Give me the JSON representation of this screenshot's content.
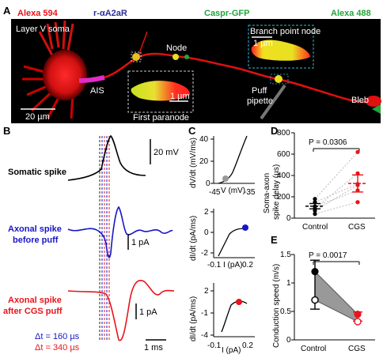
{
  "panel_labels": {
    "a": "A",
    "b": "B",
    "c": "C",
    "d": "D",
    "e": "E"
  },
  "panel_a": {
    "legend": {
      "alexa594": "Alexa 594",
      "ra2ar": "r-αA2aR",
      "caspr": "Caspr-GFP",
      "alexa488": "Alexa 488"
    },
    "labels": {
      "soma": "Layer V soma",
      "ais": "AIS",
      "node": "Node",
      "branch_node": "Branch point node",
      "first_paranode": "First paranode",
      "puff_pipette": "Puff\npipette",
      "bleb": "Bleb"
    },
    "scalebars": {
      "main": "20 µm",
      "inset_branch": "1 µm",
      "inset_paranode": "1 µm"
    },
    "colors": {
      "red": "#e8141c",
      "blue": "#2b2f9e",
      "green": "#21a63c",
      "inset_border": "#31b7d8",
      "magenta": "#e02cc8"
    }
  },
  "panel_b": {
    "traces": {
      "somatic": "Somatic spike",
      "axonal_before": "Axonal spike\nbefore puff",
      "axonal_after": "Axonal spike\nafter CGS puff"
    },
    "scalebars": {
      "somatic_v": "20 mV",
      "axonal_before_i": "1 pA",
      "axonal_after_i": "1 pA",
      "time": "1 ms"
    },
    "delays": {
      "before": "Δt = 160 µs",
      "after": "Δt = 340 µs"
    },
    "colors": {
      "somatic": "#000000",
      "before": "#1616c8",
      "after": "#e8141c"
    }
  },
  "panel_c": {
    "top": {
      "ylabel": "dV/dt (mV/ms)",
      "xlabel": "V (mV)",
      "yticks": [
        "40",
        "20",
        "0"
      ],
      "xticks": [
        "-45",
        "-35"
      ]
    },
    "mid": {
      "ylabel": "dI/dt (pA/ms)",
      "xlabel": "I (pA)",
      "yticks": [
        "2",
        "0",
        "-2"
      ],
      "xticks": [
        "-0.1",
        "0.2"
      ]
    },
    "bot": {
      "ylabel": "dI/dt (pA/ms)",
      "xlabel": "I (pA)",
      "yticks": [
        "2",
        "-1",
        "-4"
      ],
      "xticks": [
        "-0.1",
        "0.2"
      ]
    }
  },
  "panel_d": {
    "ylabel": "Soma-axon\nspike delay (µs)",
    "yticks": [
      "800",
      "600",
      "400",
      "200",
      "0"
    ],
    "categories": [
      "Control",
      "CGS"
    ],
    "pvalue": "P = 0.0306",
    "chart_data": {
      "type": "scatter",
      "ylim": [
        0,
        800
      ],
      "categories": [
        "Control",
        "CGS"
      ],
      "pairs": [
        [
          180,
          620
        ],
        [
          150,
          320
        ],
        [
          110,
          260
        ],
        [
          90,
          420
        ],
        [
          70,
          310
        ],
        [
          40,
          150
        ]
      ],
      "means": [
        112,
        325
      ],
      "sem": [
        25,
        80
      ]
    }
  },
  "panel_e": {
    "ylabel": "Conduction speed (m/s)",
    "yticks": [
      "1.5",
      "1",
      "0.5",
      "0"
    ],
    "categories": [
      "Control",
      "CGS"
    ],
    "pvalue": "P = 0.0017",
    "chart_data": {
      "type": "line",
      "ylim": [
        0,
        1.5
      ],
      "categories": [
        "Control",
        "CGS"
      ],
      "cell_filled": [
        1.2,
        0.45
      ],
      "cell_open": [
        0.7,
        0.32
      ],
      "means": [
        0.97,
        0.41
      ],
      "sem": [
        0.43,
        0.08
      ]
    }
  }
}
